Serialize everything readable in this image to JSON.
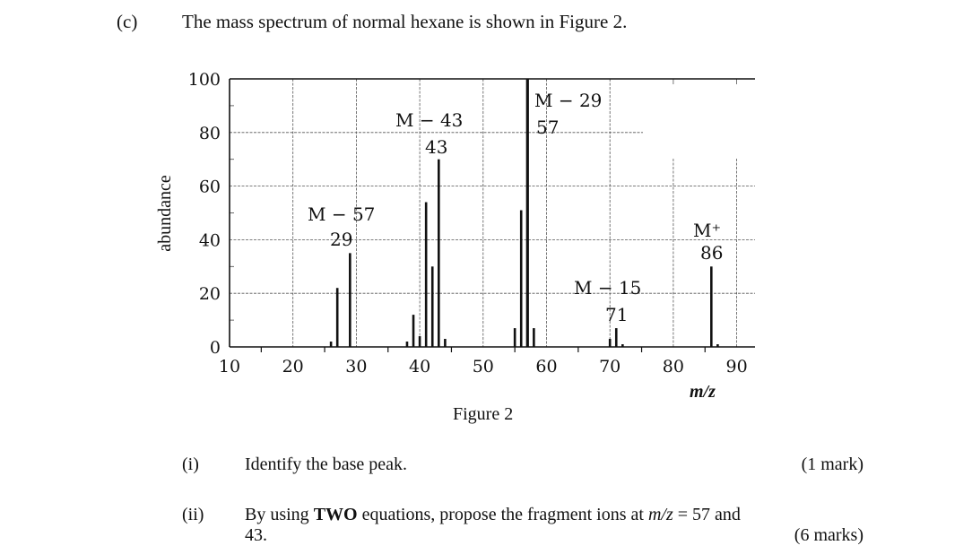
{
  "question": {
    "label": "(c)",
    "text": "The mass spectrum of normal hexane is shown in Figure 2."
  },
  "figure": {
    "caption": "Figure 2",
    "xlabel": "m/z",
    "ylabel": "abundance",
    "annotations": [
      {
        "line1": "M − 57",
        "line2": "29",
        "x": 29
      },
      {
        "line1": "M − 43",
        "line2": "43",
        "x": 43
      },
      {
        "line1": "M − 29",
        "line2": "57",
        "x": 57
      },
      {
        "line1": "M − 15",
        "line2": "71",
        "x": 71
      },
      {
        "line1": "M⁺",
        "line2": "86",
        "x": 86
      }
    ]
  },
  "chart_data": {
    "type": "bar",
    "title": "Mass spectrum of normal hexane (Figure 2)",
    "xlabel": "m/z",
    "ylabel": "abundance",
    "xlim": [
      10,
      92
    ],
    "ylim": [
      0,
      100
    ],
    "xticks": [
      10,
      20,
      30,
      40,
      50,
      60,
      70,
      80,
      90
    ],
    "yticks": [
      0,
      20,
      40,
      60,
      80,
      100
    ],
    "grid": true,
    "x": [
      26,
      27,
      29,
      38,
      39,
      40,
      41,
      42,
      43,
      44,
      55,
      56,
      57,
      58,
      70,
      71,
      72,
      86,
      87
    ],
    "values": [
      2,
      22,
      35,
      2,
      12,
      4,
      54,
      30,
      70,
      3,
      7,
      51,
      100,
      7,
      3,
      7,
      1,
      30,
      1
    ],
    "annotations": [
      {
        "text": "M − 57 / 29",
        "x": 29
      },
      {
        "text": "M − 43 / 43",
        "x": 43
      },
      {
        "text": "M − 29 / 57",
        "x": 57
      },
      {
        "text": "M − 15 / 71",
        "x": 71
      },
      {
        "text": "M+ / 86",
        "x": 86
      }
    ]
  },
  "parts": [
    {
      "label": "(i)",
      "text": "Identify the base peak.",
      "marks": "(1 mark)"
    },
    {
      "label": "(ii)",
      "text_pre": "By using ",
      "text_bold": "TWO",
      "text_mid": " equations, propose the fragment ions at ",
      "text_italic": "m/z",
      "text_post": " = 57 and",
      "text_line2": "43.",
      "marks": "(6 marks)"
    }
  ]
}
